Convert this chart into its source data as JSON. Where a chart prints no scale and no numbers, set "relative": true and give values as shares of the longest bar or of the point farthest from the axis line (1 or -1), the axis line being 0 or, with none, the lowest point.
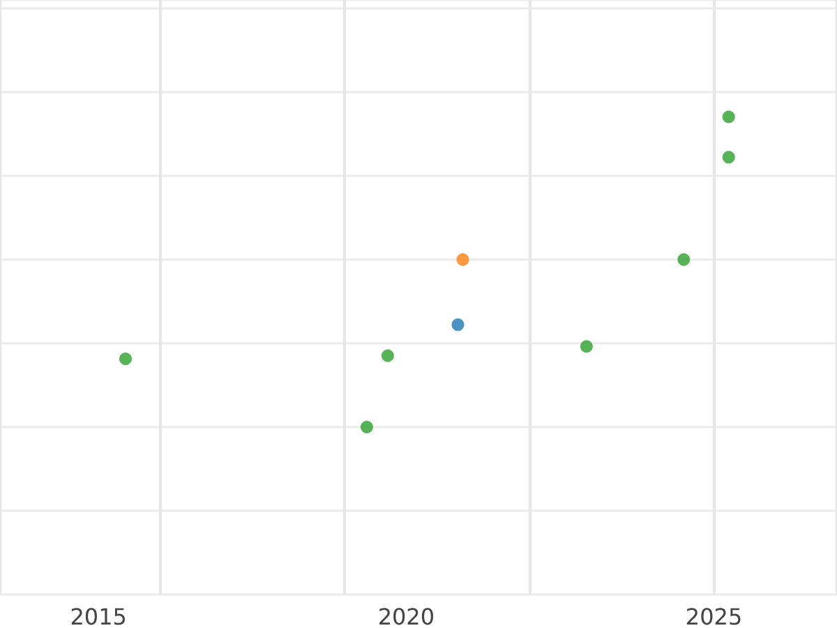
{
  "chart_data": {
    "type": "scatter",
    "relative": true,
    "xlim": [
      2013.4,
      2027
    ],
    "xticks": [
      2015,
      2020,
      2025
    ],
    "grid": true,
    "marker": "circle",
    "series": [
      {
        "color": "#2ca02c",
        "x": [
          2015.44,
          2019.36,
          2019.7,
          2022.93,
          2024.51,
          2025.24,
          2025.24
        ],
        "values": [
          0.22,
          0,
          0.23,
          0.26,
          0.54,
          1,
          0.87
        ]
      },
      {
        "color": "#1f77b4",
        "x": [
          2020.84
        ],
        "values": [
          0.33
        ]
      },
      {
        "color": "#ff7f0e",
        "x": [
          2020.92
        ],
        "values": [
          0.54
        ]
      }
    ]
  }
}
